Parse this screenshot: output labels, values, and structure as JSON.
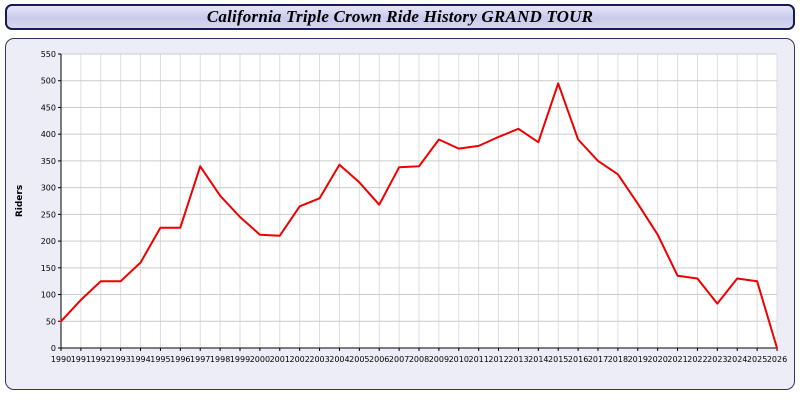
{
  "title": "California Triple Crown Ride History GRAND TOUR",
  "colors": {
    "line": "#ee0000",
    "grid_v": "#dddddd",
    "grid_h": "#cccccc",
    "axis": "#000000",
    "plot_bg": "#ffffff",
    "panel_bg": "#ededf7",
    "title_bg": "#cfcfee",
    "border": "#1a1a55"
  },
  "chart_data": {
    "type": "line",
    "title": "California Triple Crown Ride History GRAND TOUR",
    "xlabel": "",
    "ylabel": "Riders",
    "ylim": [
      0,
      550
    ],
    "ytick_step": 50,
    "grid": true,
    "legend": "none",
    "categories": [
      1990,
      1991,
      1992,
      1993,
      1994,
      1995,
      1996,
      1997,
      1998,
      1999,
      2000,
      2001,
      2002,
      2003,
      2004,
      2005,
      2006,
      2007,
      2008,
      2009,
      2010,
      2011,
      2012,
      2013,
      2014,
      2015,
      2016,
      2017,
      2018,
      2019,
      2020,
      2021,
      2022,
      2023,
      2024,
      2025,
      2026
    ],
    "series": [
      {
        "name": "Riders",
        "values": [
          50,
          90,
          125,
          125,
          160,
          225,
          225,
          340,
          285,
          245,
          212,
          210,
          265,
          280,
          343,
          310,
          268,
          338,
          340,
          390,
          373,
          378,
          395,
          410,
          385,
          495,
          390,
          350,
          325,
          270,
          212,
          135,
          130,
          83,
          130,
          125,
          0
        ]
      }
    ]
  }
}
